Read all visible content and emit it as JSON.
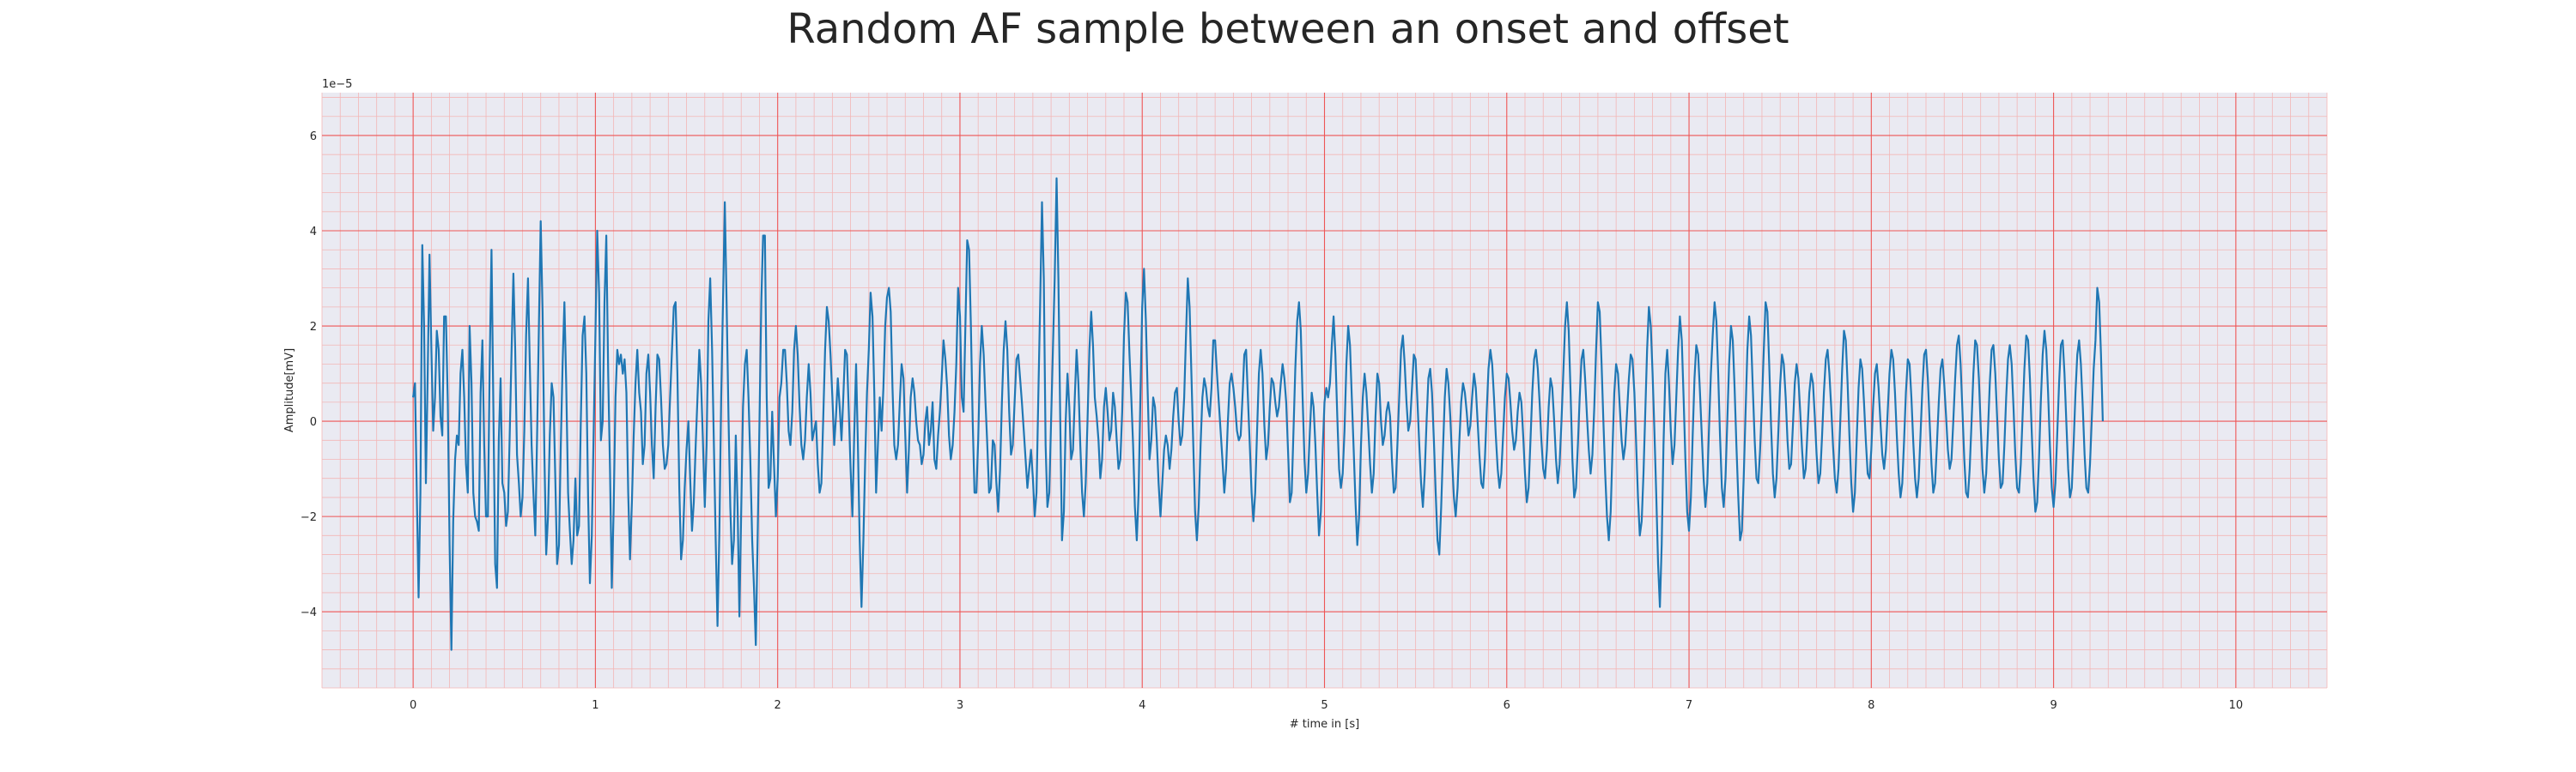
{
  "chart_data": {
    "type": "line",
    "title": "Random AF sample between an onset and offset",
    "xlabel": "# time in [s]",
    "ylabel": "Amplitude[mV]",
    "y_multiplier_label": "1e−5",
    "xlim": [
      -0.5,
      10.5
    ],
    "ylim": [
      -5.6,
      6.9
    ],
    "x_ticks": [
      0,
      1,
      2,
      3,
      4,
      5,
      6,
      7,
      8,
      9,
      10
    ],
    "x_tick_labels": [
      "0",
      "1",
      "2",
      "3",
      "4",
      "5",
      "6",
      "7",
      "8",
      "9",
      "10"
    ],
    "y_ticks": [
      -4,
      -2,
      0,
      2,
      4,
      6
    ],
    "y_tick_labels": [
      "−4",
      "−2",
      "0",
      "2",
      "4",
      "6"
    ],
    "grid": true,
    "minor_grid": true,
    "colors": {
      "line": "#1f77b4",
      "background": "#eaeaf2",
      "major_grid": "#ee5555",
      "minor_grid": "#f3b6b6"
    },
    "series": [
      {
        "x_start": 0,
        "x_step": 0.01,
        "values": [
          0.5,
          0.8,
          -1.5,
          -3.7,
          -1.5,
          3.7,
          2.0,
          -1.3,
          1.0,
          3.5,
          1.5,
          -0.2,
          0.5,
          1.9,
          1.5,
          0.1,
          -0.3,
          2.2,
          2.2,
          0.4,
          -2.6,
          -4.8,
          -2.1,
          -0.8,
          -0.3,
          -0.5,
          1.0,
          1.5,
          0.5,
          -0.9,
          -1.5,
          2.0,
          0.8,
          -1.5,
          -2.0,
          -2.1,
          -2.3,
          0.6,
          1.7,
          -0.5,
          -2.0,
          -2.0,
          1.2,
          3.6,
          0.4,
          -3.0,
          -3.5,
          -0.4,
          0.9,
          -1.3,
          -1.5,
          -2.2,
          -1.9,
          -0.3,
          1.5,
          3.1,
          1.5,
          -0.7,
          -1.3,
          -2.0,
          -1.6,
          -0.2,
          1.8,
          3.0,
          1.2,
          -0.5,
          -1.5,
          -2.4,
          -0.3,
          2.0,
          4.2,
          2.3,
          -0.7,
          -2.8,
          -2.0,
          -0.3,
          0.8,
          0.5,
          -1.2,
          -3.0,
          -2.6,
          -0.5,
          1.2,
          2.5,
          0.8,
          -1.5,
          -2.3,
          -3.0,
          -2.5,
          -1.2,
          -2.4,
          -2.2,
          0.0,
          1.8,
          2.2,
          1.0,
          -1.6,
          -3.4,
          -2.4,
          -0.3,
          1.8,
          4.0,
          2.7,
          -0.4,
          0.0,
          2.5,
          3.9,
          1.0,
          -1.0,
          -3.5,
          -1.9,
          0.5,
          1.5,
          1.2,
          1.4,
          1.0,
          1.3,
          0.6,
          -1.5,
          -2.9,
          -1.7,
          -0.3,
          0.8,
          1.5,
          0.6,
          0.2,
          -0.9,
          -0.5,
          1.0,
          1.4,
          0.6,
          -0.5,
          -1.2,
          0.3,
          1.4,
          1.3,
          0.5,
          -0.5,
          -1.0,
          -0.9,
          -0.5,
          0.5,
          1.5,
          2.4,
          2.5,
          1.0,
          -1.4,
          -2.9,
          -2.5,
          -1.4,
          -0.6,
          0.0,
          -1.2,
          -2.3,
          -1.7,
          -0.5,
          0.5,
          1.5,
          0.8,
          -0.4,
          -1.8,
          -0.5,
          2.1,
          3.0,
          1.5,
          -0.5,
          -2.5,
          -4.3,
          -2.3,
          0.5,
          2.5,
          4.6,
          2.5,
          0.1,
          -1.8,
          -3.0,
          -2.5,
          -0.3,
          -1.8,
          -4.1,
          -1.9,
          0.3,
          1.2,
          1.5,
          0.5,
          -0.8,
          -2.5,
          -3.5,
          -4.7,
          -2.5,
          0.0,
          2.5,
          3.9,
          3.9,
          0.5,
          -1.4,
          -1.2,
          0.2,
          -0.9,
          -2.0,
          -1.2,
          0.5,
          0.8,
          1.5,
          1.5,
          0.8,
          -0.2,
          -0.5,
          0.2,
          1.5,
          2.0,
          1.4,
          0.3,
          -0.5,
          -0.8,
          -0.4,
          0.5,
          1.2,
          0.6,
          -0.4,
          -0.2,
          0.0,
          -0.9,
          -1.5,
          -1.3,
          0.1,
          1.5,
          2.4,
          2.1,
          1.4,
          0.5,
          -0.5,
          0.1,
          0.9,
          0.3,
          -0.4,
          0.5,
          1.5,
          1.4,
          0.2,
          -1.0,
          -2.0,
          -0.3,
          1.2,
          -0.5,
          -2.5,
          -3.9,
          -2.5,
          -0.8,
          0.6,
          1.5,
          2.7,
          2.2,
          0.6,
          -1.5,
          -0.5,
          0.5,
          -0.2,
          0.7,
          2.0,
          2.6,
          2.8,
          2.3,
          0.7,
          -0.5,
          -0.8,
          -0.5,
          0.4,
          1.2,
          0.9,
          -0.3,
          -1.5,
          -0.6,
          0.5,
          0.9,
          0.6,
          0.0,
          -0.4,
          -0.5,
          -0.9,
          -0.7,
          0.0,
          0.3,
          -0.5,
          -0.2,
          0.4,
          -0.8,
          -1.0,
          -0.3,
          0.2,
          0.9,
          1.7,
          1.3,
          0.7,
          -0.3,
          -0.8,
          -0.5,
          0.2,
          1.2,
          2.8,
          2.2,
          0.5,
          0.2,
          2.0,
          3.8,
          3.6,
          2.0,
          0.0,
          -1.5,
          -1.5,
          -0.4,
          1.2,
          2.0,
          1.4,
          0.4,
          -0.5,
          -1.5,
          -1.4,
          -0.4,
          -0.5,
          -1.3,
          -1.9,
          -1.0,
          0.4,
          1.5,
          2.1,
          1.5,
          0.2,
          -0.7,
          -0.5,
          0.4,
          1.3,
          1.4,
          0.9,
          0.4,
          -0.2,
          -0.8,
          -1.4,
          -1.0,
          -0.6,
          -1.2,
          -2.0,
          -1.5,
          0.5,
          2.5,
          4.6,
          3.0,
          -0.5,
          -1.8,
          -1.5,
          0.0,
          1.5,
          3.0,
          5.1,
          3.0,
          0.1,
          -2.5,
          -1.9,
          0.0,
          1.0,
          0.3,
          -0.8,
          -0.6,
          0.5,
          1.5,
          0.8,
          -0.5,
          -1.5,
          -2.0,
          -1.3,
          0.0,
          1.5,
          2.3,
          1.6,
          0.5,
          0.1,
          -0.4,
          -1.2,
          -0.8,
          0.3,
          0.7,
          0.2,
          -0.4,
          -0.2,
          0.6,
          0.3,
          -0.4,
          -1.0,
          -0.8,
          0.2,
          1.8,
          2.7,
          2.5,
          1.4,
          0.5,
          -0.5,
          -1.8,
          -2.5,
          -1.5,
          0.5,
          2.4,
          3.2,
          2.1,
          0.6,
          -0.8,
          -0.4,
          0.5,
          0.3,
          -0.4,
          -1.3,
          -2.0,
          -1.3,
          -0.6,
          -0.3,
          -0.5,
          -1.0,
          -0.6,
          0.1,
          0.6,
          0.7,
          0.0,
          -0.5,
          -0.3,
          0.5,
          1.8,
          3.0,
          2.4,
          1.0,
          -0.5,
          -1.9,
          -2.5,
          -1.8,
          -0.5,
          0.5,
          0.9,
          0.7,
          0.3,
          0.1,
          0.7,
          1.7,
          1.7,
          1.0,
          0.4,
          -0.2,
          -0.8,
          -1.5,
          -1.0,
          0.0,
          0.8,
          1.0,
          0.7,
          0.3,
          -0.2,
          -0.4,
          -0.3,
          0.5,
          1.4,
          1.5,
          0.5,
          -0.5,
          -1.5,
          -2.1,
          -1.5,
          -0.2,
          1.0,
          1.5,
          1.0,
          -0.1,
          -0.8,
          -0.5,
          0.3,
          0.9,
          0.8,
          0.4,
          0.1,
          0.3,
          0.8,
          1.2,
          0.9,
          0.4,
          -0.6,
          -1.7,
          -1.5,
          -0.2,
          1.1,
          2.1,
          2.5,
          1.9,
          0.5,
          -0.8,
          -1.5,
          -1.1,
          -0.2,
          0.6,
          0.3,
          -0.5,
          -1.5,
          -2.4,
          -1.9,
          -0.6,
          0.4,
          0.7,
          0.5,
          0.8,
          1.6,
          2.2,
          1.4,
          0.1,
          -1.0,
          -1.4,
          -1.1,
          -0.2,
          1.2,
          2.0,
          1.6,
          0.5,
          -0.6,
          -1.7,
          -2.6,
          -2.0,
          -0.5,
          0.5,
          1.0,
          0.6,
          -0.1,
          -0.9,
          -1.5,
          -1.1,
          0.1,
          1.0,
          0.8,
          0.0,
          -0.5,
          -0.3,
          0.2,
          0.4,
          0.1,
          -0.8,
          -1.5,
          -1.4,
          -0.5,
          0.5,
          1.5,
          1.8,
          1.2,
          0.4,
          -0.2,
          0.0,
          0.7,
          1.4,
          1.3,
          0.4,
          -0.5,
          -1.3,
          -1.8,
          -1.1,
          0.0,
          0.9,
          1.1,
          0.6,
          -0.4,
          -1.5,
          -2.5,
          -2.8,
          -1.8,
          -0.6,
          0.5,
          1.1,
          0.8,
          0.1,
          -0.8,
          -1.6,
          -2.0,
          -1.4,
          -0.4,
          0.4,
          0.8,
          0.6,
          0.2,
          -0.3,
          -0.1,
          0.5,
          1.0,
          0.7,
          0.0,
          -0.7,
          -1.3,
          -1.4,
          -0.8,
          0.2,
          1.1,
          1.5,
          1.2,
          0.5,
          -0.3,
          -1.0,
          -1.4,
          -1.1,
          -0.3,
          0.5,
          1.0,
          0.9,
          0.4,
          -0.2,
          -0.6,
          -0.4,
          0.2,
          0.6,
          0.4,
          -0.3,
          -1.1,
          -1.7,
          -1.4,
          -0.4,
          0.6,
          1.3,
          1.5,
          1.1,
          0.4,
          -0.4,
          -1.0,
          -1.2,
          -0.6,
          0.3,
          0.9,
          0.7,
          0.0,
          -0.8,
          -1.3,
          -0.9,
          0.0,
          1.0,
          2.0,
          2.5,
          1.9,
          0.6,
          -0.8,
          -1.6,
          -1.4,
          -0.5,
          0.5,
          1.3,
          1.5,
          0.9,
          0.1,
          -0.6,
          -1.1,
          -0.7,
          0.3,
          1.5,
          2.5,
          2.3,
          1.2,
          0.0,
          -1.1,
          -2.0,
          -2.5,
          -1.9,
          -0.6,
          0.6,
          1.2,
          1.0,
          0.3,
          -0.4,
          -0.8,
          -0.5,
          0.2,
          0.9,
          1.4,
          1.3,
          0.6,
          -0.5,
          -1.6,
          -2.4,
          -2.1,
          -1.1,
          0.2,
          1.5,
          2.4,
          2.0,
          1.0,
          -0.2,
          -1.5,
          -3.0,
          -3.9,
          -2.6,
          -0.5,
          1.0,
          1.5,
          0.8,
          -0.2,
          -0.9,
          -0.5,
          0.5,
          1.5,
          2.2,
          1.7,
          0.5,
          -0.8,
          -1.9,
          -2.3,
          -1.6,
          -0.3,
          0.9,
          1.6,
          1.4,
          0.6,
          -0.3,
          -1.2,
          -1.8,
          -1.3,
          -0.1,
          1.0,
          1.8,
          2.5,
          2.1,
          1.0,
          -0.3,
          -1.4,
          -1.8,
          -1.2,
          0.0,
          1.2,
          2.0,
          1.7,
          0.7,
          -0.5,
          -1.6,
          -2.5,
          -2.3,
          -1.2,
          0.2,
          1.5,
          2.2,
          1.8,
          0.7,
          -0.4,
          -1.2,
          -1.3,
          -0.6,
          0.4,
          1.5,
          2.5,
          2.3,
          1.2,
          -0.1,
          -1.1,
          -1.6,
          -1.2,
          -0.2,
          0.8,
          1.4,
          1.2,
          0.5,
          -0.4,
          -1.0,
          -0.9,
          -0.1,
          0.8,
          1.2,
          0.9,
          0.2,
          -0.6,
          -1.2,
          -1.0,
          -0.2,
          0.6,
          1.0,
          0.8,
          0.1,
          -0.7,
          -1.3,
          -1.1,
          -0.3,
          0.6,
          1.3,
          1.5,
          1.0,
          0.3,
          -0.5,
          -1.2,
          -1.5,
          -1.0,
          0.0,
          1.1,
          1.9,
          1.7,
          0.8,
          -0.3,
          -1.3,
          -1.9,
          -1.5,
          -0.4,
          0.7,
          1.3,
          1.1,
          0.4,
          -0.4,
          -1.1,
          -1.2,
          -0.6,
          0.3,
          1.0,
          1.2,
          0.7,
          0.0,
          -0.7,
          -1.0,
          -0.6,
          0.2,
          1.0,
          1.5,
          1.3,
          0.6,
          -0.3,
          -1.1,
          -1.6,
          -1.3,
          -0.4,
          0.6,
          1.3,
          1.2,
          0.5,
          -0.4,
          -1.2,
          -1.6,
          -1.2,
          -0.3,
          0.7,
          1.4,
          1.5,
          0.9,
          0.0,
          -0.9,
          -1.5,
          -1.3,
          -0.5,
          0.4,
          1.1,
          1.3,
          0.8,
          0.1,
          -0.6,
          -1.0,
          -0.8,
          0.0,
          0.9,
          1.6,
          1.8,
          1.2,
          0.2,
          -0.8,
          -1.5,
          -1.6,
          -1.0,
          0.0,
          1.0,
          1.7,
          1.6,
          0.9,
          -0.1,
          -1.0,
          -1.5,
          -1.1,
          -0.2,
          0.8,
          1.5,
          1.6,
          1.0,
          0.1,
          -0.8,
          -1.4,
          -1.3,
          -0.5,
          0.5,
          1.3,
          1.6,
          1.2,
          0.3,
          -0.7,
          -1.4,
          -1.5,
          -0.9,
          0.1,
          1.1,
          1.8,
          1.7,
          0.9,
          -0.2,
          -1.2,
          -1.9,
          -1.7,
          -0.8,
          0.4,
          1.4,
          1.9,
          1.5,
          0.6,
          -0.5,
          -1.4,
          -1.8,
          -1.3,
          -0.3,
          0.8,
          1.6,
          1.7,
          1.0,
          0.0,
          -1.0,
          -1.6,
          -1.4,
          -0.5,
          0.6,
          1.4,
          1.7,
          1.2,
          0.3,
          -0.7,
          -1.4,
          -1.5,
          -0.9,
          0.1,
          1.1,
          1.7,
          2.8,
          2.5,
          1.4,
          0.0
        ]
      }
    ]
  }
}
